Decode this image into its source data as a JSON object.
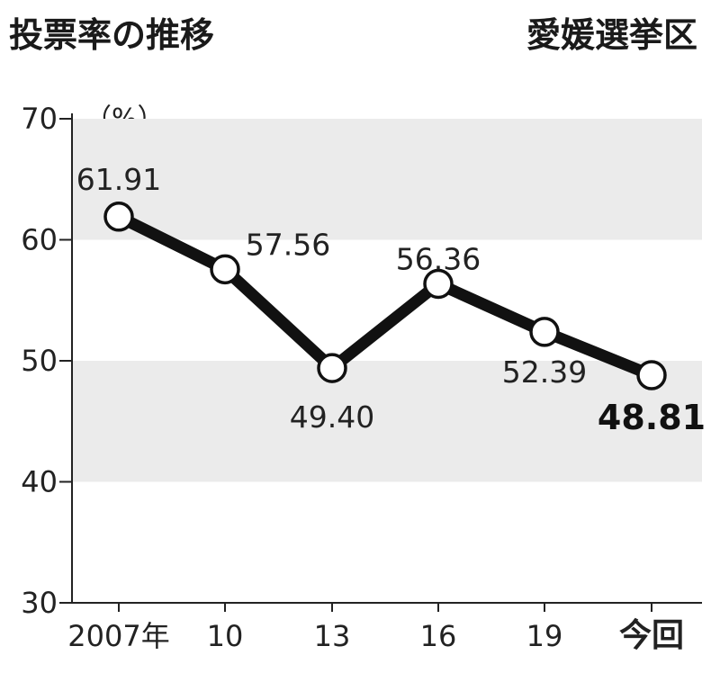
{
  "chart_data": {
    "type": "line",
    "title": "投票率の推移",
    "subtitle": "愛媛選挙区",
    "ylabel": "（%）",
    "xlabel": "",
    "categories": [
      "2007年",
      "10",
      "13",
      "16",
      "19",
      "今回"
    ],
    "values": [
      61.91,
      57.56,
      49.4,
      56.36,
      52.39,
      48.81
    ],
    "data_labels": [
      "61.91",
      "57.56",
      "49.40",
      "56.36",
      "52.39",
      "48.81"
    ],
    "ylim": [
      30,
      70
    ],
    "yticks": [
      "30",
      "40",
      "50",
      "60",
      "70"
    ],
    "grid": "alternating horizontal bands",
    "colors": {
      "line": "#111111",
      "band": "#ebebeb",
      "marker_fill": "#ffffff"
    }
  }
}
